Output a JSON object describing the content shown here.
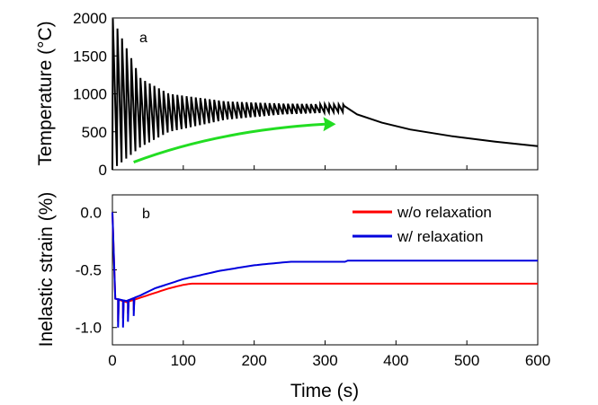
{
  "chart_data": [
    {
      "panel_label": "a",
      "type": "line",
      "ylabel": "Temperature (°C)",
      "xlim": [
        0,
        600
      ],
      "ylim": [
        0,
        2000
      ],
      "yticks": [
        "0",
        "500",
        "1000",
        "1500",
        "2000"
      ],
      "series": [
        {
          "color": "#000000",
          "style": "sawtooth",
          "pulse_period_s": 6.5,
          "pulse_end_s": 327,
          "peaks": [
            [
              0,
              2000
            ],
            [
              40,
              1200
            ],
            [
              80,
              1000
            ],
            [
              160,
              900
            ],
            [
              240,
              870
            ],
            [
              320,
              860
            ]
          ],
          "troughs": [
            [
              0,
              0
            ],
            [
              40,
              300
            ],
            [
              80,
              500
            ],
            [
              160,
              660
            ],
            [
              240,
              730
            ],
            [
              320,
              760
            ]
          ],
          "cooling": [
            [
              327,
              840
            ],
            [
              345,
              730
            ],
            [
              380,
              620
            ],
            [
              420,
              530
            ],
            [
              480,
              440
            ],
            [
              540,
              370
            ],
            [
              600,
              310
            ]
          ]
        }
      ],
      "annotation_arrow": {
        "color": "#22dd22",
        "points": [
          [
            30,
            100
          ],
          [
            100,
            300
          ],
          [
            200,
            500
          ],
          [
            300,
            600
          ]
        ]
      }
    },
    {
      "panel_label": "b",
      "type": "line",
      "xlabel": "Time (s)",
      "ylabel": "Inelastic strain (%)",
      "xlim": [
        0,
        600
      ],
      "ylim": [
        -1.15,
        0.15
      ],
      "xticks": [
        "0",
        "100",
        "200",
        "300",
        "400",
        "500",
        "600"
      ],
      "yticks": [
        "0.0",
        "-0.5",
        "-1.0"
      ],
      "legend_position": "top-right",
      "series": [
        {
          "name": "w/o relaxation",
          "color": "#ff0000",
          "points": [
            [
              0,
              0.0
            ],
            [
              4,
              -0.75
            ],
            [
              20,
              -0.78
            ],
            [
              40,
              -0.74
            ],
            [
              60,
              -0.7
            ],
            [
              80,
              -0.66
            ],
            [
              100,
              -0.63
            ],
            [
              110,
              -0.62
            ],
            [
              600,
              -0.62
            ]
          ],
          "dips": [
            [
              8,
              -0.95
            ],
            [
              15,
              -0.92
            ],
            [
              22,
              -0.88
            ],
            [
              30,
              -0.85
            ]
          ]
        },
        {
          "name": "w/ relaxation",
          "color": "#0000dd",
          "points": [
            [
              0,
              0.0
            ],
            [
              4,
              -0.75
            ],
            [
              20,
              -0.77
            ],
            [
              40,
              -0.72
            ],
            [
              60,
              -0.66
            ],
            [
              80,
              -0.62
            ],
            [
              100,
              -0.58
            ],
            [
              150,
              -0.51
            ],
            [
              200,
              -0.46
            ],
            [
              250,
              -0.43
            ],
            [
              330,
              -0.43
            ],
            [
              332,
              -0.42
            ],
            [
              600,
              -0.42
            ]
          ],
          "dips": [
            [
              8,
              -1.0
            ],
            [
              15,
              -1.0
            ],
            [
              22,
              -0.95
            ],
            [
              30,
              -0.9
            ]
          ]
        }
      ]
    }
  ]
}
